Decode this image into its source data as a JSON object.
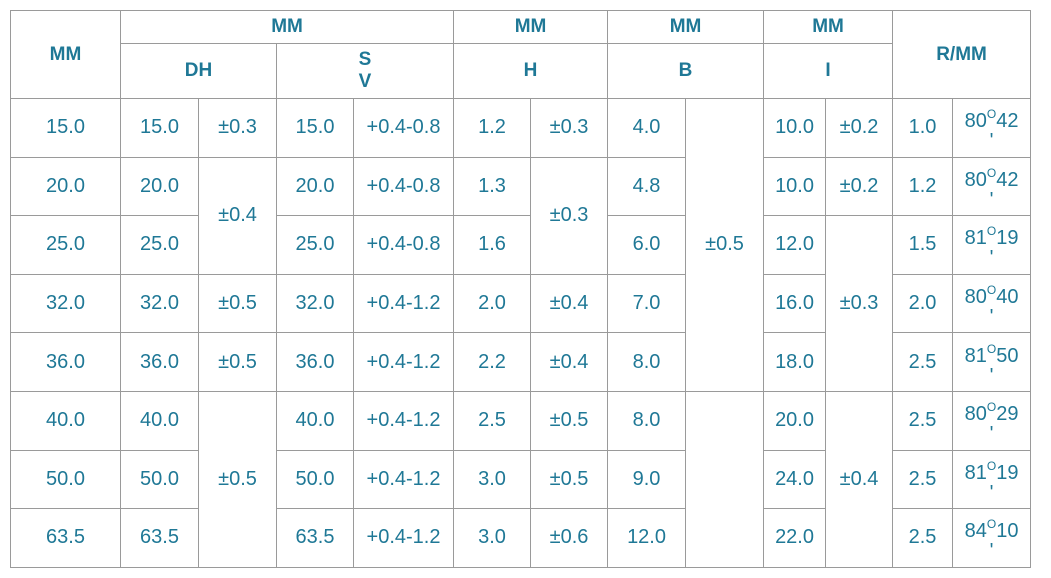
{
  "header": {
    "row1": [
      "MM",
      "MM",
      "MM",
      "MM",
      "MM",
      "R/MM"
    ],
    "row2": [
      "DH",
      [
        "S",
        "V"
      ],
      "H",
      "B",
      "I"
    ]
  },
  "rows": [
    {
      "mm": "15.0",
      "dh": "15.0",
      "dh_tol": "±0.3",
      "s": "15.0",
      "s_tol": "+0.4-0.8",
      "h": "1.2",
      "h_tol": "±0.3",
      "b": "4.0",
      "b_tol": "±0.5",
      "i": "10.0",
      "i_tol": "±0.2",
      "r": "1.0",
      "angle": {
        "degrees": "80",
        "mark": "O",
        "minutes": "42",
        "prime": "'"
      }
    },
    {
      "mm": "20.0",
      "dh": "20.0",
      "dh_tol": "±0.4",
      "s": "20.0",
      "s_tol": "+0.4-0.8",
      "h": "1.3",
      "h_tol": "±0.3",
      "b": "4.8",
      "i": "10.0",
      "i_tol": "±0.2",
      "r": "1.2",
      "angle": {
        "degrees": "80",
        "mark": "O",
        "minutes": "42",
        "prime": "'"
      }
    },
    {
      "mm": "25.0",
      "dh": "25.0",
      "s": "25.0",
      "s_tol": "+0.4-0.8",
      "h": "1.6",
      "b": "6.0",
      "i": "12.0",
      "i_tol": "±0.3",
      "r": "1.5",
      "angle": {
        "degrees": "81",
        "mark": "O",
        "minutes": "19",
        "prime": "'"
      }
    },
    {
      "mm": "32.0",
      "dh": "32.0",
      "dh_tol": "±0.5",
      "s": "32.0",
      "s_tol": "+0.4-1.2",
      "h": "2.0",
      "h_tol": "±0.4",
      "b": "7.0",
      "i": "16.0",
      "r": "2.0",
      "angle": {
        "degrees": "80",
        "mark": "O",
        "minutes": "40",
        "prime": "'"
      }
    },
    {
      "mm": "36.0",
      "dh": "36.0",
      "dh_tol": "±0.5",
      "s": "36.0",
      "s_tol": "+0.4-1.2",
      "h": "2.2",
      "h_tol": "±0.4",
      "b": "8.0",
      "i": "18.0",
      "r": "2.5",
      "angle": {
        "degrees": "81",
        "mark": "O",
        "minutes": "50",
        "prime": "'"
      }
    },
    {
      "mm": "40.0",
      "dh": "40.0",
      "dh_tol": "±0.5",
      "s": "40.0",
      "s_tol": "+0.4-1.2",
      "h": "2.5",
      "h_tol": "±0.5",
      "b": "8.0",
      "i": "20.0",
      "i_tol": "±0.4",
      "r": "2.5",
      "angle": {
        "degrees": "80",
        "mark": "O",
        "minutes": "29",
        "prime": "'"
      }
    },
    {
      "mm": "50.0",
      "dh": "50.0",
      "s": "50.0",
      "s_tol": "+0.4-1.2",
      "h": "3.0",
      "h_tol": "±0.5",
      "b": "9.0",
      "i": "24.0",
      "r": "2.5",
      "angle": {
        "degrees": "81",
        "mark": "O",
        "minutes": "19",
        "prime": "'"
      }
    },
    {
      "mm": "63.5",
      "dh": "63.5",
      "s": "63.5",
      "s_tol": "+0.4-1.2",
      "h": "3.0",
      "h_tol": "±0.6",
      "b": "12.0",
      "i": "22.0",
      "r": "2.5",
      "angle": {
        "degrees": "84",
        "mark": "O",
        "minutes": "10",
        "prime": "'"
      }
    }
  ]
}
